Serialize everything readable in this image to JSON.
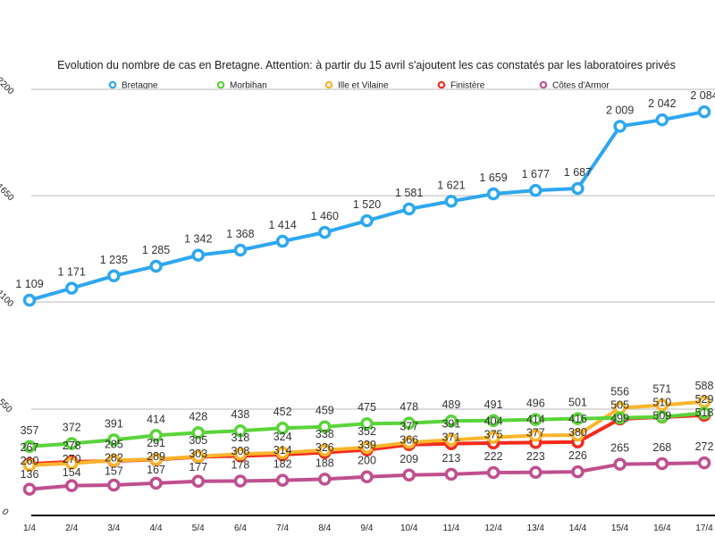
{
  "chart_data": {
    "type": "line",
    "title": "Evolution du nombre de cas en Bretagne. Attention: à partir du 15 avril s'ajoutent les cas constatés par les laboratoires privés",
    "legend_position": "top",
    "grid": true,
    "categories": [
      "1/4",
      "2/4",
      "3/4",
      "4/4",
      "5/4",
      "6/4",
      "7/4",
      "8/4",
      "9/4",
      "10/4",
      "11/4",
      "12/4",
      "13/4",
      "14/4",
      "15/4",
      "16/4",
      "17/4"
    ],
    "panels": [
      {
        "ylim": [
          1100,
          2200
        ],
        "yticks": [
          1100,
          1650,
          2200
        ],
        "series_indices": [
          0
        ]
      },
      {
        "ylim": [
          0,
          550
        ],
        "yticks": [
          0,
          550
        ],
        "series_indices": [
          1,
          2,
          3,
          4
        ]
      }
    ],
    "series": [
      {
        "name": "Bretagne",
        "color": "#2ea7f0",
        "values": [
          1109,
          1171,
          1235,
          1285,
          1342,
          1368,
          1414,
          1460,
          1520,
          1581,
          1621,
          1659,
          1677,
          1687,
          2009,
          2042,
          2084
        ]
      },
      {
        "name": "Morbihan",
        "color": "#5ad43a",
        "values": [
          357,
          372,
          391,
          414,
          428,
          438,
          452,
          459,
          475,
          478,
          489,
          491,
          496,
          501,
          505,
          510,
          529
        ]
      },
      {
        "name": "Ille et Vilaine",
        "color": "#fbb52b",
        "values": [
          260,
          270,
          285,
          291,
          305,
          318,
          324,
          338,
          352,
          377,
          391,
          404,
          414,
          416,
          556,
          571,
          588
        ]
      },
      {
        "name": "Finistère",
        "color": "#f52b1e",
        "values": [
          267,
          278,
          282,
          289,
          303,
          308,
          314,
          326,
          339,
          366,
          371,
          375,
          377,
          380,
          499,
          509,
          518
        ]
      },
      {
        "name": "Côtes d'Armor",
        "color": "#c04f8e",
        "values": [
          136,
          154,
          157,
          167,
          177,
          178,
          182,
          188,
          200,
          209,
          213,
          222,
          223,
          226,
          265,
          268,
          272
        ]
      }
    ]
  }
}
